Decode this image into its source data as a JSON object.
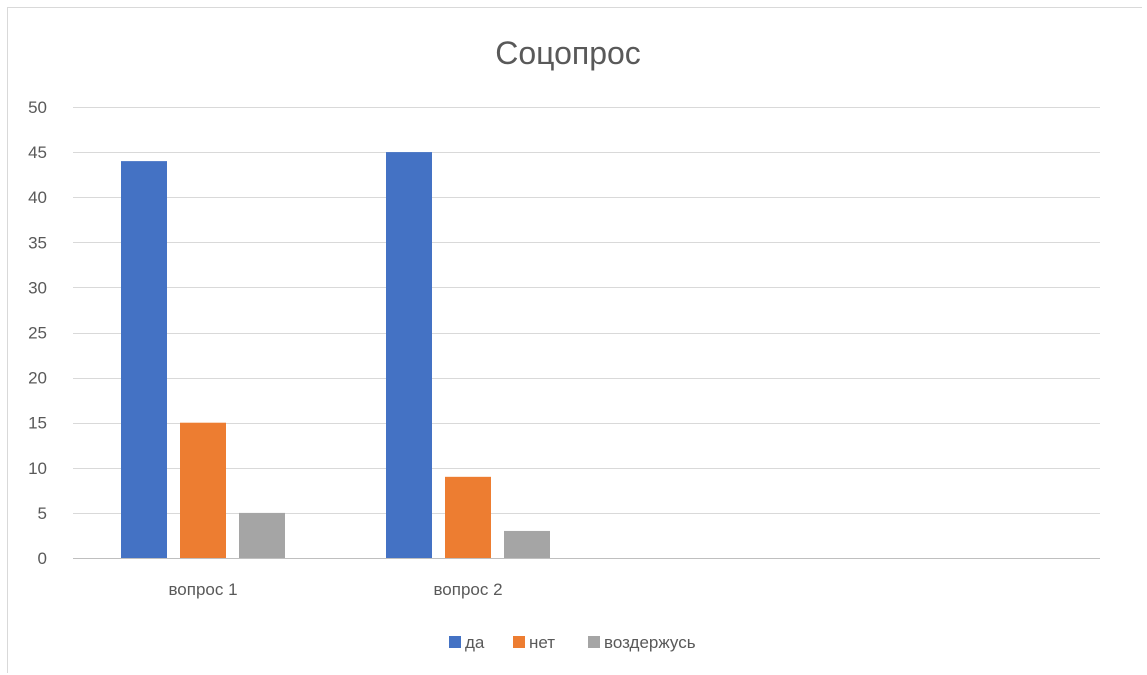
{
  "chart_data": {
    "type": "bar",
    "title": "Соцопрос",
    "categories": [
      "вопрос 1",
      "вопрос 2"
    ],
    "series": [
      {
        "name": "да",
        "values": [
          44,
          45
        ],
        "color": "#4472C4"
      },
      {
        "name": "нет",
        "values": [
          15,
          9
        ],
        "color": "#ED7D31"
      },
      {
        "name": "воздержусь",
        "values": [
          5,
          3
        ],
        "color": "#A5A5A5"
      }
    ],
    "ylim": [
      0,
      50
    ],
    "yticks": [
      0,
      5,
      10,
      15,
      20,
      25,
      30,
      35,
      40,
      45,
      50
    ],
    "grid": true,
    "legend_position": "bottom",
    "gridline_color": "#d9d9d9",
    "axis_color": "#bfbfbf",
    "text_color": "#595959"
  }
}
